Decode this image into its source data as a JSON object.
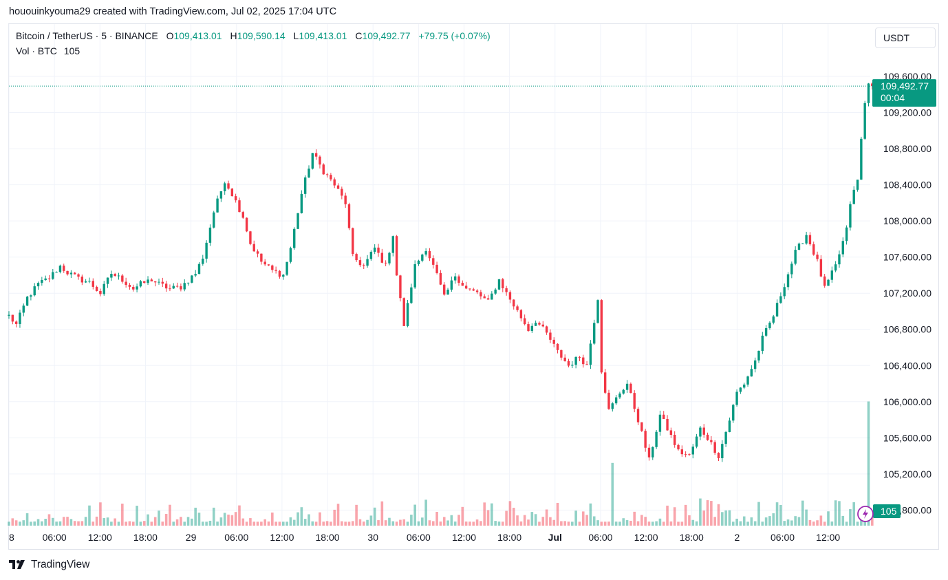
{
  "caption": "hououinkyouma29 created with TradingView.com, Jul 02, 2025 17:04 UTC",
  "symbol": {
    "title": "Bitcoin / TetherUS · 5 · BINANCE",
    "o_label": "O",
    "o": "109,413.01",
    "h_label": "H",
    "h": "109,590.14",
    "l_label": "L",
    "l": "109,413.01",
    "c_label": "C",
    "c": "109,492.77",
    "change": "+79.75 (+0.07%)"
  },
  "volume": {
    "label": "Vol · BTC",
    "value": "105"
  },
  "currency_button": "USDT",
  "price_badge": {
    "price": "109,492.77",
    "countdown": "00:04"
  },
  "volume_badge": "105",
  "footer": {
    "brand": "TradingView"
  },
  "colors": {
    "up": "#089981",
    "down": "#f23645",
    "grid": "#f0f3fa",
    "text": "#131722",
    "accent_purple": "#9c27b0"
  },
  "chart_data": {
    "type": "candlestick",
    "timeframe": "5",
    "y_axis_ticks": [
      "109,600.00",
      "109,200.00",
      "108,800.00",
      "108,400.00",
      "108,000.00",
      "107,600.00",
      "107,200.00",
      "106,800.00",
      "106,400.00",
      "106,000.00",
      "105,600.00",
      "105,200.00",
      "104,800.00"
    ],
    "ylim": [
      104800,
      109700
    ],
    "x_axis_ticks": [
      "8",
      "06:00",
      "12:00",
      "18:00",
      "29",
      "06:00",
      "12:00",
      "18:00",
      "30",
      "06:00",
      "12:00",
      "18:00",
      "Jul",
      "06:00",
      "12:00",
      "18:00",
      "2",
      "06:00",
      "12:00"
    ],
    "last_price": 109492.77,
    "price_path": [
      [
        0,
        106950
      ],
      [
        2,
        106850
      ],
      [
        5,
        107150
      ],
      [
        8,
        107300
      ],
      [
        11,
        107370
      ],
      [
        14,
        107500
      ],
      [
        16,
        107430
      ],
      [
        19,
        107360
      ],
      [
        22,
        107320
      ],
      [
        25,
        107200
      ],
      [
        28,
        107420
      ],
      [
        31,
        107350
      ],
      [
        34,
        107250
      ],
      [
        36,
        107300
      ],
      [
        39,
        107350
      ],
      [
        41,
        107300
      ],
      [
        44,
        107250
      ],
      [
        47,
        107270
      ],
      [
        51,
        107420
      ],
      [
        53,
        107600
      ],
      [
        56,
        108100
      ],
      [
        59,
        108450
      ],
      [
        61,
        108300
      ],
      [
        64,
        108050
      ],
      [
        66,
        107750
      ],
      [
        69,
        107550
      ],
      [
        72,
        107450
      ],
      [
        75,
        107400
      ],
      [
        77,
        107700
      ],
      [
        80,
        108300
      ],
      [
        83,
        108750
      ],
      [
        86,
        108550
      ],
      [
        89,
        108400
      ],
      [
        92,
        108200
      ],
      [
        94,
        107600
      ],
      [
        97,
        107500
      ],
      [
        100,
        107700
      ],
      [
        103,
        107500
      ],
      [
        105,
        107850
      ],
      [
        106,
        107400
      ],
      [
        108,
        106850
      ],
      [
        111,
        107500
      ],
      [
        114,
        107700
      ],
      [
        117,
        107400
      ],
      [
        119,
        107150
      ],
      [
        122,
        107400
      ],
      [
        125,
        107250
      ],
      [
        128,
        107200
      ],
      [
        131,
        107100
      ],
      [
        134,
        107350
      ],
      [
        136,
        107200
      ],
      [
        139,
        107000
      ],
      [
        142,
        106800
      ],
      [
        144,
        106900
      ],
      [
        147,
        106750
      ],
      [
        150,
        106550
      ],
      [
        153,
        106400
      ],
      [
        156,
        106500
      ],
      [
        158,
        106400
      ],
      [
        161,
        107150
      ],
      [
        162,
        106350
      ],
      [
        164,
        105900
      ],
      [
        167,
        106100
      ],
      [
        169,
        106200
      ],
      [
        172,
        105800
      ],
      [
        175,
        105350
      ],
      [
        178,
        105850
      ],
      [
        180,
        105700
      ],
      [
        183,
        105450
      ],
      [
        186,
        105400
      ],
      [
        189,
        105700
      ],
      [
        191,
        105600
      ],
      [
        194,
        105400
      ],
      [
        197,
        105800
      ],
      [
        199,
        106100
      ],
      [
        201,
        106200
      ],
      [
        204,
        106450
      ],
      [
        206,
        106700
      ],
      [
        209,
        106950
      ],
      [
        212,
        107300
      ],
      [
        215,
        107650
      ],
      [
        218,
        107850
      ],
      [
        221,
        107550
      ],
      [
        223,
        107250
      ],
      [
        226,
        107500
      ],
      [
        229,
        107900
      ],
      [
        230,
        108200
      ],
      [
        232,
        108450
      ],
      [
        233,
        108900
      ],
      [
        234,
        109300
      ],
      [
        235,
        109550
      ],
      [
        236,
        109492.77
      ]
    ],
    "volume_spikes": [
      [
        165,
        0.48
      ],
      [
        235,
        0.95
      ]
    ],
    "current_volume": 105
  }
}
